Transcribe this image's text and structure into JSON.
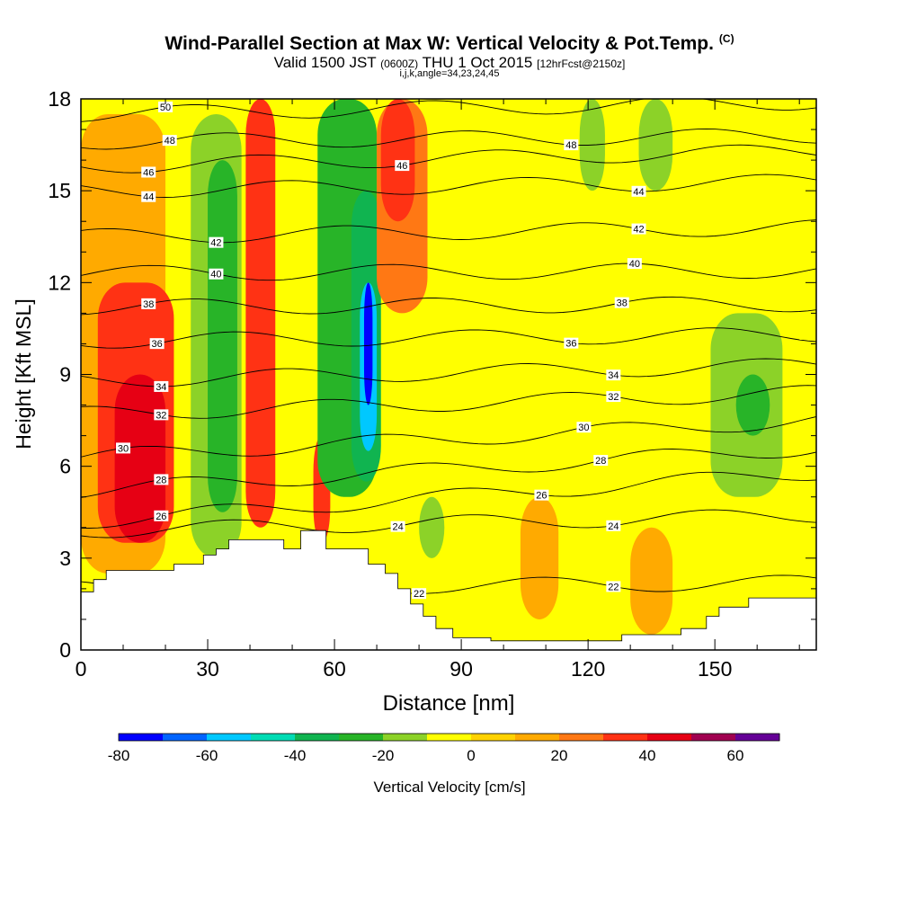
{
  "header": {
    "title": "Wind-Parallel Section at Max W: Vertical Velocity & Pot.Temp.",
    "copyright": "(C)",
    "valid_prefix": "Valid 1500 JST",
    "valid_utc": "(0600Z)",
    "valid_date": "THU 1 Oct 2015",
    "forecast": "[12hrFcst@2150z]",
    "indices": "i,j,k,angle=34,23,24,45"
  },
  "chart_data": {
    "type": "heatmap",
    "xlabel": "Distance [nm]",
    "ylabel": "Height [Kft MSL]",
    "xlim": [
      0,
      174
    ],
    "ylim": [
      0,
      18
    ],
    "xticks": [
      "0",
      "30",
      "60",
      "90",
      "120",
      "150"
    ],
    "yticks": [
      "0",
      "3",
      "6",
      "9",
      "12",
      "15",
      "18"
    ],
    "colorbar": {
      "label": "Vertical Velocity [cm/s]",
      "bounds": [
        -80,
        -70,
        -60,
        -50,
        -40,
        -30,
        -20,
        -10,
        0,
        10,
        20,
        30,
        40,
        50,
        60,
        70
      ],
      "tick_labels": [
        "-80",
        "-60",
        "-40",
        "-20",
        "0",
        "20",
        "40",
        "60"
      ],
      "colors": [
        "#0000ff",
        "#0064ff",
        "#00c8ff",
        "#00dcb4",
        "#10b450",
        "#28b428",
        "#8cd228",
        "#ffff00",
        "#ffd200",
        "#ffaa00",
        "#ff7814",
        "#ff3214",
        "#e60014",
        "#a00050",
        "#640096"
      ]
    },
    "velocity_cells": [
      {
        "x": [
          0,
          20
        ],
        "y": [
          2.5,
          17.5
        ],
        "value": 15
      },
      {
        "x": [
          4,
          22
        ],
        "y": [
          3.5,
          12
        ],
        "value": 35
      },
      {
        "x": [
          8,
          20
        ],
        "y": [
          3.5,
          9
        ],
        "value": 45
      },
      {
        "x": [
          26,
          38
        ],
        "y": [
          3,
          17.5
        ],
        "value": -15
      },
      {
        "x": [
          30,
          37
        ],
        "y": [
          4.5,
          16
        ],
        "value": -25
      },
      {
        "x": [
          39,
          46
        ],
        "y": [
          4,
          18
        ],
        "value": 35
      },
      {
        "x": [
          55,
          59
        ],
        "y": [
          3.5,
          7
        ],
        "value": 35
      },
      {
        "x": [
          56,
          70
        ],
        "y": [
          5,
          18
        ],
        "value": -25
      },
      {
        "x": [
          64,
          71
        ],
        "y": [
          5.5,
          15
        ],
        "value": -35
      },
      {
        "x": [
          66,
          70
        ],
        "y": [
          6.5,
          12
        ],
        "value": -55
      },
      {
        "x": [
          67,
          69
        ],
        "y": [
          8,
          12
        ],
        "value": -75
      },
      {
        "x": [
          70,
          82
        ],
        "y": [
          11,
          18
        ],
        "value": 25
      },
      {
        "x": [
          71,
          79
        ],
        "y": [
          14,
          18
        ],
        "value": 35
      },
      {
        "x": [
          80,
          86
        ],
        "y": [
          3,
          5
        ],
        "value": -15
      },
      {
        "x": [
          118,
          124
        ],
        "y": [
          15,
          18
        ],
        "value": -15
      },
      {
        "x": [
          132,
          140
        ],
        "y": [
          15,
          18
        ],
        "value": -15
      },
      {
        "x": [
          149,
          166
        ],
        "y": [
          5,
          11
        ],
        "value": -15
      },
      {
        "x": [
          155,
          163
        ],
        "y": [
          7,
          9
        ],
        "value": -25
      },
      {
        "x": [
          104,
          113
        ],
        "y": [
          1,
          5
        ],
        "value": 15
      },
      {
        "x": [
          130,
          140
        ],
        "y": [
          0.5,
          4
        ],
        "value": 15
      }
    ],
    "isentropes": [
      {
        "label": "22",
        "h0": 2.0,
        "h1": 2.2,
        "label_x": 80,
        "label_x2": 126
      },
      {
        "label": "24",
        "h0": 3.9,
        "h1": 4.4,
        "label_x": 75,
        "label_x2": 126
      },
      {
        "label": "26",
        "h0": 4.2,
        "h1": 5.8,
        "label_x": 19,
        "label_x2": 109
      },
      {
        "label": "28",
        "h0": 5.2,
        "h1": 6.6,
        "label_x": 19,
        "label_x2": 123
      },
      {
        "label": "30",
        "h0": 6.3,
        "h1": 7.5,
        "label_x": 10,
        "label_x2": 119
      },
      {
        "label": "32",
        "h0": 7.7,
        "h1": 8.4,
        "label_x": 19,
        "label_x2": 126
      },
      {
        "label": "34",
        "h0": 8.8,
        "h1": 9.3,
        "label_x": 19,
        "label_x2": 126
      },
      {
        "label": "36",
        "h0": 10.1,
        "h1": 10.3,
        "label_x": 18,
        "label_x2": 116
      },
      {
        "label": "38",
        "h0": 11.2,
        "h1": 11.3,
        "label_x": 16,
        "label_x2": 128
      },
      {
        "label": "40",
        "h0": 12.3,
        "h1": 12.4,
        "label_x": 32,
        "label_x2": 131
      },
      {
        "label": "42",
        "h0": 13.5,
        "h1": 13.8,
        "label_x": 32,
        "label_x2": 132
      },
      {
        "label": "44",
        "h0": 15.0,
        "h1": 15.3,
        "label_x": 16,
        "label_x2": 132
      },
      {
        "label": "46",
        "h0": 15.8,
        "h1": 16.3,
        "label_x": 16,
        "label_x2": 76
      },
      {
        "label": "48",
        "h0": 16.6,
        "h1": 16.8,
        "label_x": 21,
        "label_x2": 116
      },
      {
        "label": "50",
        "h0": 17.5,
        "h1": 17.9,
        "label_x": 20,
        "label_x2": 999
      }
    ],
    "terrain": [
      [
        0,
        1.9
      ],
      [
        3,
        1.9
      ],
      [
        3,
        2.3
      ],
      [
        6,
        2.3
      ],
      [
        6,
        2.6
      ],
      [
        22,
        2.6
      ],
      [
        22,
        2.8
      ],
      [
        29,
        2.8
      ],
      [
        29,
        3.1
      ],
      [
        32,
        3.1
      ],
      [
        32,
        3.3
      ],
      [
        35,
        3.3
      ],
      [
        35,
        3.6
      ],
      [
        48,
        3.6
      ],
      [
        48,
        3.3
      ],
      [
        52,
        3.3
      ],
      [
        52,
        3.9
      ],
      [
        58,
        3.9
      ],
      [
        58,
        3.3
      ],
      [
        68,
        3.3
      ],
      [
        68,
        2.8
      ],
      [
        72,
        2.8
      ],
      [
        72,
        2.5
      ],
      [
        75,
        2.5
      ],
      [
        75,
        2.0
      ],
      [
        78,
        2.0
      ],
      [
        78,
        1.5
      ],
      [
        81,
        1.5
      ],
      [
        81,
        1.1
      ],
      [
        84,
        1.1
      ],
      [
        84,
        0.7
      ],
      [
        88,
        0.7
      ],
      [
        88,
        0.4
      ],
      [
        97,
        0.4
      ],
      [
        97,
        0.3
      ],
      [
        128,
        0.3
      ],
      [
        128,
        0.5
      ],
      [
        142,
        0.5
      ],
      [
        142,
        0.7
      ],
      [
        148,
        0.7
      ],
      [
        148,
        1.1
      ],
      [
        151,
        1.1
      ],
      [
        151,
        1.4
      ],
      [
        158,
        1.4
      ],
      [
        158,
        1.7
      ],
      [
        174,
        1.7
      ]
    ]
  }
}
